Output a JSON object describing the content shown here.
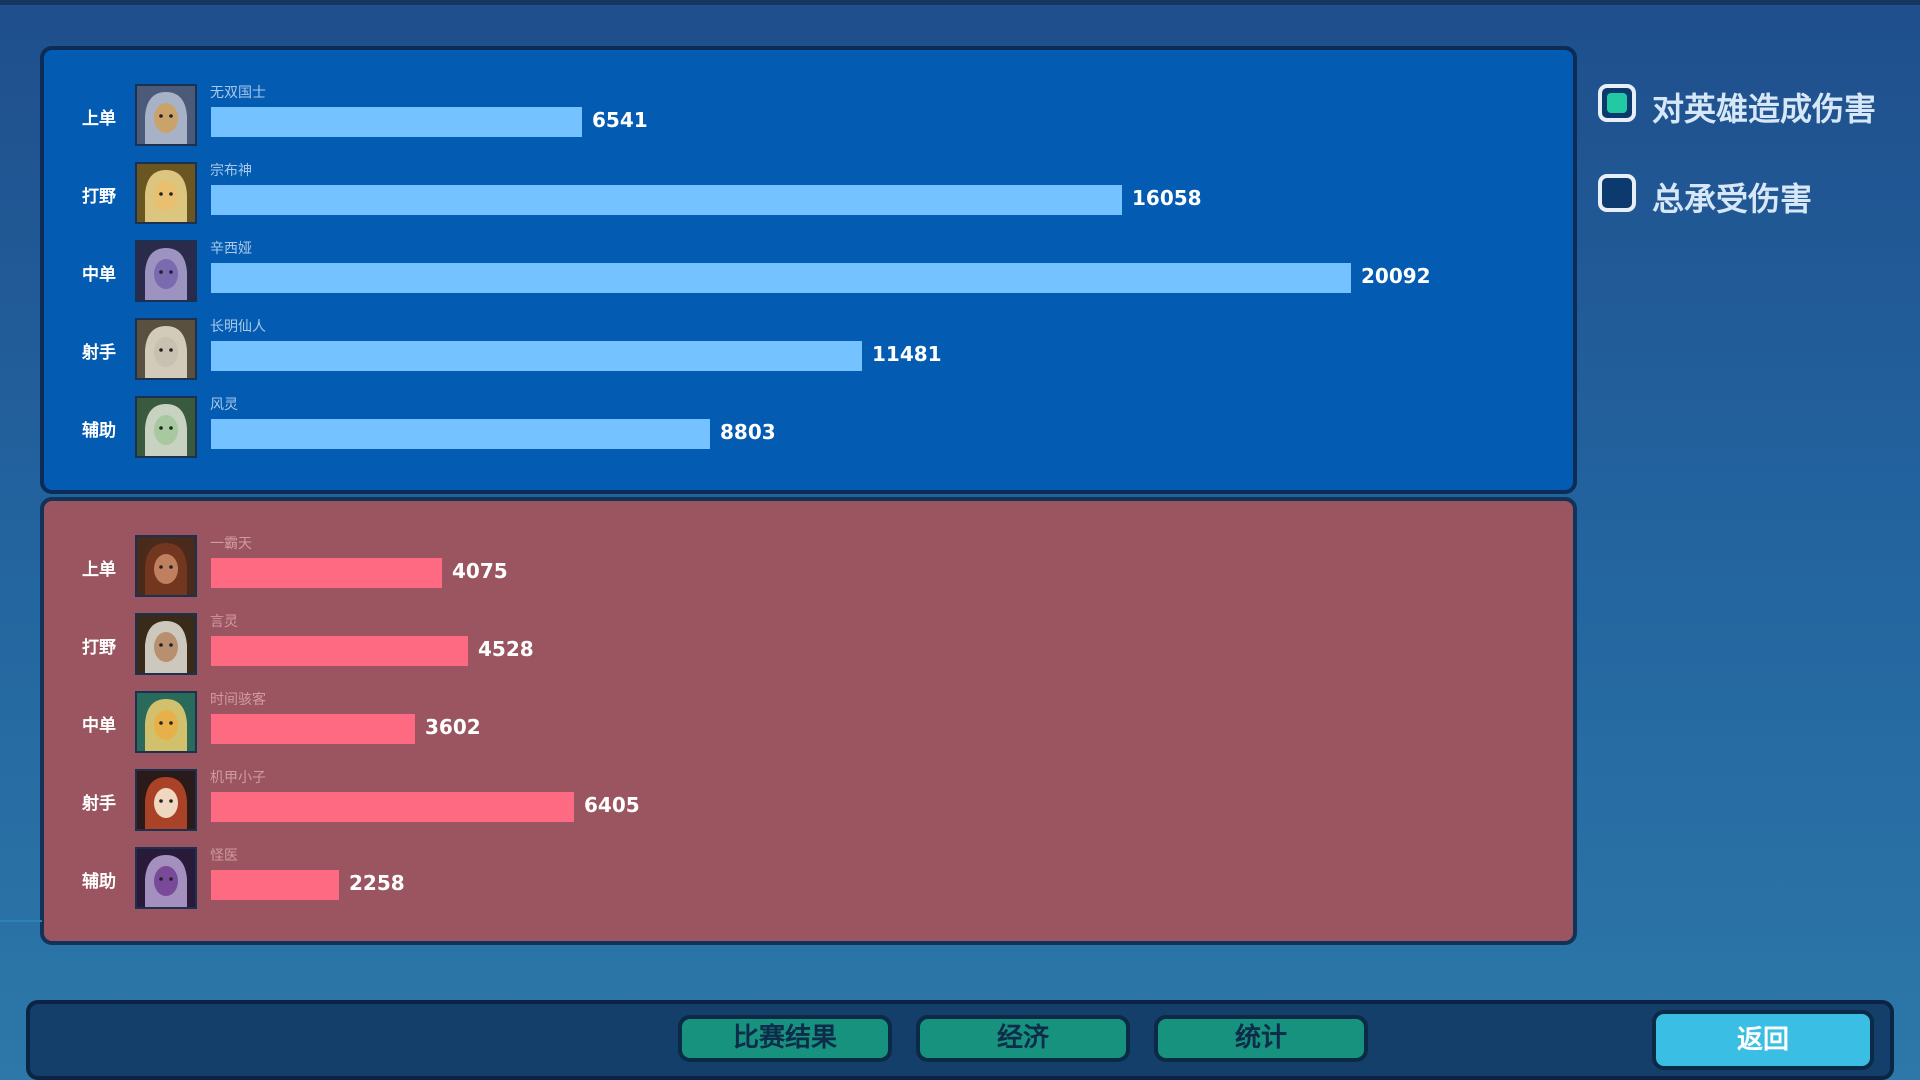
{
  "blue_team": {
    "players": [
      {
        "role": "上单",
        "hero": "无双国士",
        "damage": 6541,
        "damage_label": "6541",
        "avatar_icon": "hero-portrait-armored-warrior"
      },
      {
        "role": "打野",
        "hero": "宗布神",
        "damage": 16058,
        "damage_label": "16058",
        "avatar_icon": "hero-portrait-blonde-knight"
      },
      {
        "role": "中单",
        "hero": "辛西娅",
        "damage": 20092,
        "damage_label": "20092",
        "avatar_icon": "hero-portrait-mage"
      },
      {
        "role": "射手",
        "hero": "长明仙人",
        "damage": 11481,
        "damage_label": "11481",
        "avatar_icon": "hero-portrait-old-sage"
      },
      {
        "role": "辅助",
        "hero": "风灵",
        "damage": 8803,
        "damage_label": "8803",
        "avatar_icon": "hero-portrait-elf"
      }
    ]
  },
  "red_team": {
    "players": [
      {
        "role": "上单",
        "hero": "一霸天",
        "damage": 4075,
        "damage_label": "4075",
        "avatar_icon": "hero-portrait-bearded-warrior"
      },
      {
        "role": "打野",
        "hero": "言灵",
        "damage": 4528,
        "damage_label": "4528",
        "avatar_icon": "hero-portrait-white-hair"
      },
      {
        "role": "中单",
        "hero": "时间骇客",
        "damage": 3602,
        "damage_label": "3602",
        "avatar_icon": "hero-portrait-goggles"
      },
      {
        "role": "射手",
        "hero": "机甲小子",
        "damage": 6405,
        "damage_label": "6405",
        "avatar_icon": "hero-portrait-red-hood"
      },
      {
        "role": "辅助",
        "hero": "怪医",
        "damage": 2258,
        "damage_label": "2258",
        "avatar_icon": "hero-portrait-purple-hair"
      }
    ]
  },
  "scale_max_damage": 20092,
  "filters": [
    {
      "label": "对英雄造成伤害",
      "checked": true
    },
    {
      "label": "总承受伤害",
      "checked": false
    }
  ],
  "bottom_bar": {
    "tabs": [
      "比赛结果",
      "经济",
      "统计"
    ],
    "back_label": "返回"
  },
  "colors": {
    "blue_panel": "#035bb2",
    "red_panel": "#9a5561",
    "blue_bar": "#74c2ff",
    "red_bar": "#fe6a81",
    "checkbox_fill": "#22c9a2",
    "tab_button": "#17927f",
    "back_button": "#3bbee3"
  }
}
